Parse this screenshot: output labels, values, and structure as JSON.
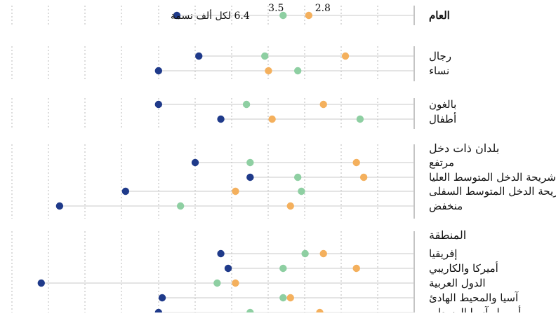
{
  "chart_data": {
    "type": "dot-plot",
    "x_range": [
      0,
      10
    ],
    "grid": "vertical-dashed",
    "colors": {
      "dark": "#1f3a8a",
      "green": "#8ecfa2",
      "orange": "#f4b05d",
      "connector": "#c8c8c8",
      "grid": "#b8b8b8"
    },
    "sections": [
      {
        "heading": "",
        "rows": [
          {
            "label": "العام",
            "bold": true,
            "dark": 6.4,
            "green": 3.5,
            "orange": 2.8,
            "annotations": {
              "dark": "6.4 لكل ألف نسمة",
              "green": "3.5",
              "orange": "2.8"
            }
          }
        ]
      },
      {
        "heading": "",
        "rows": [
          {
            "label": "رجال",
            "dark": 5.8,
            "green": 4.0,
            "orange": 1.8
          },
          {
            "label": "نساء",
            "dark": 6.9,
            "green": 3.1,
            "orange": 3.9
          }
        ]
      },
      {
        "heading": "",
        "rows": [
          {
            "label": "بالغون",
            "dark": 6.9,
            "green": 4.5,
            "orange": 2.4
          },
          {
            "label": "أطفال",
            "dark": 5.2,
            "green": 1.4,
            "orange": 3.8
          }
        ]
      },
      {
        "heading": "بلدان ذات دخل",
        "rows": [
          {
            "label": "مرتفع",
            "dark": 5.9,
            "green": 4.4,
            "orange": 1.5
          },
          {
            "label": "شريحة الدخل المتوسط العليا",
            "dark": 4.4,
            "green": 3.1,
            "orange": 1.3
          },
          {
            "label": "شريحة الدخل المتوسط السفلى",
            "dark": 7.8,
            "green": 3.0,
            "orange": 4.8
          },
          {
            "label": "منخفض",
            "dark": 9.6,
            "green": 6.3,
            "orange": 3.3
          }
        ]
      },
      {
        "heading": "المنطقة",
        "rows": [
          {
            "label": "إفريقيا",
            "dark": 5.2,
            "green": 2.9,
            "orange": 2.4
          },
          {
            "label": "أميركا والكاريبي",
            "dark": 5.0,
            "green": 3.5,
            "orange": 1.5
          },
          {
            "label": "الدول العربية",
            "dark": 10.1,
            "green": 5.3,
            "orange": 4.8
          },
          {
            "label": "آسيا والمحيط الهادئ",
            "dark": 6.8,
            "green": 3.5,
            "orange": 3.3
          },
          {
            "label": "أوروبا وآسيا الوسطى",
            "dark": 6.9,
            "green": 4.4,
            "orange": 2.5
          }
        ]
      }
    ]
  }
}
